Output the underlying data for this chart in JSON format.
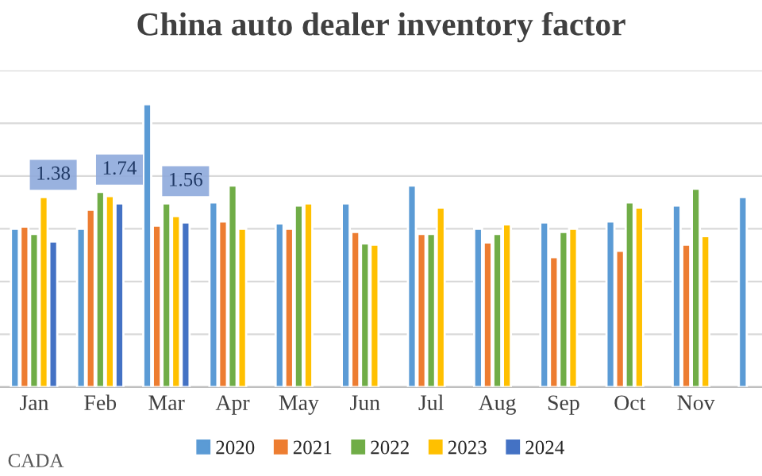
{
  "chart_data": {
    "type": "bar",
    "title": "China auto dealer inventory factor",
    "categories": [
      "Jan",
      "Feb",
      "Mar",
      "Apr",
      "May",
      "Jun",
      "Jul",
      "Aug",
      "Sep",
      "Oct",
      "Nov",
      null
    ],
    "series": [
      {
        "name": "2020",
        "color": "#5b9bd5",
        "values": [
          1.5,
          1.5,
          2.68,
          1.75,
          1.55,
          1.74,
          1.91,
          1.5,
          1.56,
          1.57,
          1.72,
          1.8
        ]
      },
      {
        "name": "2021",
        "color": "#ed7d31",
        "values": [
          1.52,
          1.68,
          1.53,
          1.57,
          1.5,
          1.47,
          1.45,
          1.37,
          1.23,
          1.29,
          1.35,
          null
        ]
      },
      {
        "name": "2022",
        "color": "#70ad47",
        "values": [
          1.45,
          1.85,
          1.74,
          1.91,
          1.72,
          1.36,
          1.45,
          1.45,
          1.47,
          1.75,
          1.88,
          null
        ]
      },
      {
        "name": "2023",
        "color": "#ffc000",
        "values": [
          1.8,
          1.81,
          1.62,
          1.5,
          1.74,
          1.35,
          1.7,
          1.54,
          1.5,
          1.7,
          1.43,
          null
        ]
      },
      {
        "name": "2024",
        "color": "#4472c4",
        "values": [
          1.38,
          1.74,
          1.56,
          null,
          null,
          null,
          null,
          null,
          null,
          null,
          null,
          null
        ],
        "value_labels": [
          "1.38",
          "1.74",
          "1.56",
          null,
          null,
          null,
          null,
          null,
          null,
          null,
          null,
          null
        ]
      }
    ],
    "ylim": [
      0,
      3
    ],
    "yticks": [
      {
        "value": 0,
        "label": null
      },
      {
        "value": 0.5,
        "label": null
      },
      {
        "value": 1,
        "label": null
      },
      {
        "value": 1.5,
        "label": null
      },
      {
        "value": 2,
        "label": null
      },
      {
        "value": 2.5,
        "label": null
      },
      {
        "value": 3,
        "label": null
      }
    ],
    "tick_labels": "x",
    "grid": "y",
    "legend": "bottom",
    "annotations": [
      "CADA"
    ]
  }
}
